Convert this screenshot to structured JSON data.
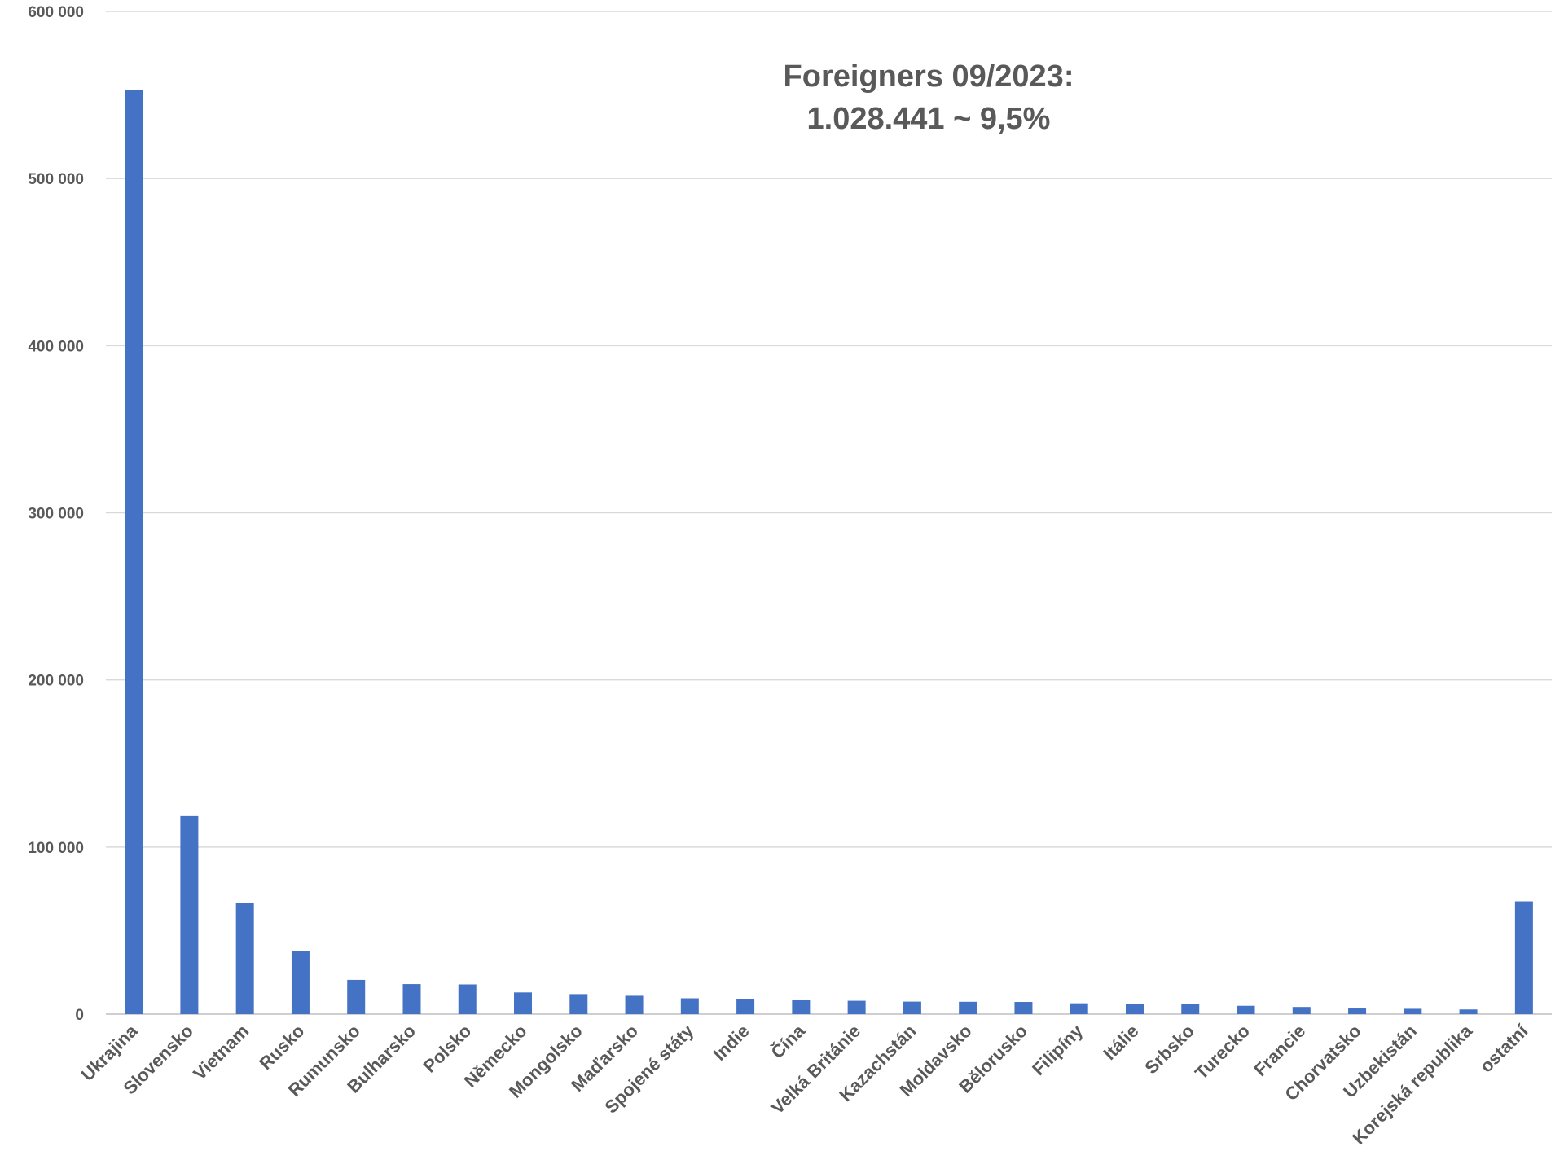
{
  "chart_data": {
    "type": "bar",
    "title": [
      "Foreigners 09/2023:",
      "1.028.441 ~ 9,5%"
    ],
    "xlabel": "",
    "ylabel": "",
    "ylim": [
      0,
      600000
    ],
    "y_ticks": [
      "0",
      "100 000",
      "200 000",
      "300 000",
      "400 000",
      "500 000",
      "600 000"
    ],
    "grid": true,
    "categories": [
      "Ukrajina",
      "Slovensko",
      "Vietnam",
      "Rusko",
      "Rumunsko",
      "Bulharsko",
      "Polsko",
      "Německo",
      "Mongolsko",
      "Maďarsko",
      "Spojené státy",
      "Indie",
      "Čína",
      "Velká Británie",
      "Kazachstán",
      "Moldavsko",
      "Bělorusko",
      "Filipíny",
      "Itálie",
      "Srbsko",
      "Turecko",
      "Francie",
      "Chorvatsko",
      "Uzbekistán",
      "Korejská republika",
      "ostatní"
    ],
    "values": [
      553000,
      118500,
      66500,
      38000,
      20500,
      18000,
      17800,
      13000,
      12000,
      11000,
      9500,
      8800,
      8300,
      8000,
      7500,
      7400,
      7300,
      6500,
      6200,
      5900,
      5000,
      4300,
      3400,
      3200,
      2800,
      67500
    ],
    "colors": {
      "bar": "#4472c4",
      "grid": "#d9d9d9",
      "text": "#595959"
    }
  }
}
